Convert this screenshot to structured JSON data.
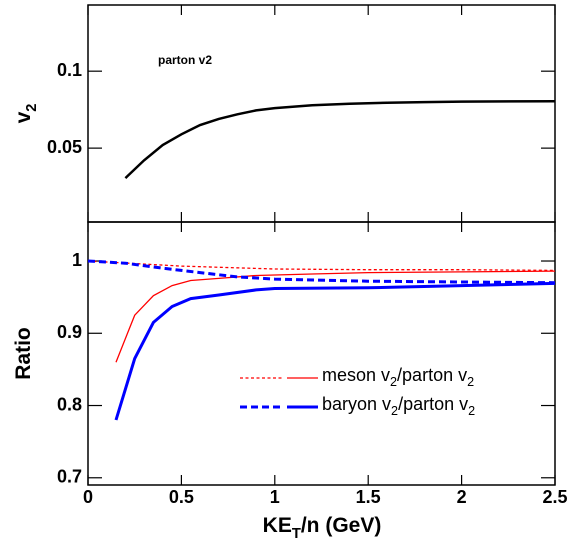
{
  "chart_data": [
    {
      "type": "line",
      "ylabel": "v2",
      "annotation": "parton v2",
      "xlim": [
        0,
        2.5
      ],
      "xticks": [
        0,
        0.5,
        1,
        1.5,
        2,
        2.5
      ],
      "ylim": [
        0.002,
        0.143
      ],
      "yticks": [
        0.05,
        0.1
      ],
      "series": [
        {
          "color": "#000000",
          "width": 2.5,
          "style": "solid",
          "x": [
            0.2,
            0.3,
            0.4,
            0.5,
            0.6,
            0.7,
            0.8,
            0.9,
            1.0,
            1.2,
            1.4,
            1.6,
            1.8,
            2.0,
            2.5
          ],
          "values": [
            0.0305,
            0.042,
            0.052,
            0.059,
            0.065,
            0.069,
            0.072,
            0.0745,
            0.076,
            0.0778,
            0.0788,
            0.0795,
            0.0799,
            0.0802,
            0.0805
          ]
        }
      ]
    },
    {
      "type": "line",
      "xlabel": "KET/n (GeV)",
      "ylabel": "Ratio",
      "xlim": [
        0,
        2.5
      ],
      "xticks": [
        0,
        0.5,
        1,
        1.5,
        2,
        2.5
      ],
      "ylim": [
        0.69,
        1.054
      ],
      "yticks": [
        0.7,
        0.8,
        0.9,
        1
      ],
      "series": [
        {
          "name": "meson v2/parton v2",
          "color": "#ff0000",
          "width": 1.3,
          "lines": [
            {
              "style": "dashed",
              "x": [
                0,
                0.5,
                1,
                1.5,
                2,
                2.5
              ],
              "values": [
                1,
                0.993,
                0.989,
                0.988,
                0.988,
                0.987
              ]
            },
            {
              "style": "solid",
              "x": [
                0.15,
                0.25,
                0.35,
                0.45,
                0.55,
                0.7,
                0.9,
                1.2,
                1.5,
                2.0,
                2.5
              ],
              "values": [
                0.86,
                0.925,
                0.952,
                0.966,
                0.973,
                0.976,
                0.98,
                0.982,
                0.984,
                0.985,
                0.986
              ]
            }
          ]
        },
        {
          "name": "baryon v2/parton v2",
          "color": "#0000ff",
          "width": 3,
          "lines": [
            {
              "style": "dashed",
              "x": [
                0,
                0.2,
                0.4,
                0.6,
                0.8,
                1.0,
                1.5,
                2.0,
                2.5
              ],
              "values": [
                1,
                0.997,
                0.99,
                0.984,
                0.978,
                0.975,
                0.972,
                0.971,
                0.97
              ]
            },
            {
              "style": "solid",
              "x": [
                0.15,
                0.25,
                0.35,
                0.45,
                0.55,
                0.7,
                0.9,
                1.0,
                1.5,
                2.0,
                2.5
              ],
              "values": [
                0.78,
                0.865,
                0.915,
                0.937,
                0.948,
                0.953,
                0.96,
                0.962,
                0.963,
                0.966,
                0.969
              ]
            }
          ]
        }
      ]
    }
  ]
}
